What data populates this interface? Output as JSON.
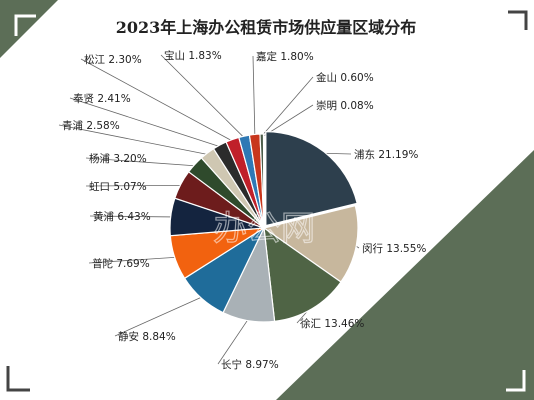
{
  "chart_data": {
    "type": "pie",
    "title": "2023年上海办公租赁市场供应量区域分布",
    "unit": "%",
    "watermark": "办公网",
    "slices": [
      {
        "name": "浦东",
        "value": 21.19,
        "label": "浦东 21.19%",
        "color": "#2d3f4d"
      },
      {
        "name": "闵行",
        "value": 13.55,
        "label": "闵行 13.55%",
        "color": "#c7b79d"
      },
      {
        "name": "徐汇",
        "value": 13.46,
        "label": "徐汇 13.46%",
        "color": "#4f6445"
      },
      {
        "name": "长宁",
        "value": 8.97,
        "label": "长宁 8.97%",
        "color": "#a9b1b6"
      },
      {
        "name": "静安",
        "value": 8.84,
        "label": "静安 8.84%",
        "color": "#1f6c9a"
      },
      {
        "name": "普陀",
        "value": 7.69,
        "label": "普陀 7.69%",
        "color": "#f2620f"
      },
      {
        "name": "黄浦",
        "value": 6.43,
        "label": "黄浦 6.43%",
        "color": "#14243f"
      },
      {
        "name": "虹口",
        "value": 5.07,
        "label": "虹口 5.07%",
        "color": "#6d1c1c"
      },
      {
        "name": "杨浦",
        "value": 3.2,
        "label": "杨浦 3.20%",
        "color": "#2f4a2c"
      },
      {
        "name": "青浦",
        "value": 2.58,
        "label": "青浦 2.58%",
        "color": "#cfc7b2"
      },
      {
        "name": "奉贤",
        "value": 2.41,
        "label": "奉贤 2.41%",
        "color": "#2b2b2b"
      },
      {
        "name": "松江",
        "value": 2.3,
        "label": "松江 2.30%",
        "color": "#c0202a"
      },
      {
        "name": "宝山",
        "value": 1.83,
        "label": "宝山 1.83%",
        "color": "#2f79b5"
      },
      {
        "name": "嘉定",
        "value": 1.8,
        "label": "嘉定 1.80%",
        "color": "#c8361c"
      },
      {
        "name": "金山",
        "value": 0.6,
        "label": "金山 0.60%",
        "color": "#4c5d4a"
      },
      {
        "name": "崇明",
        "value": 0.08,
        "label": "崇明 0.08%",
        "color": "#d4d4d4"
      }
    ]
  },
  "colors": {
    "frame_green": "#5c6e57",
    "corner_mark": "#444444",
    "leader_line": "#666666"
  }
}
